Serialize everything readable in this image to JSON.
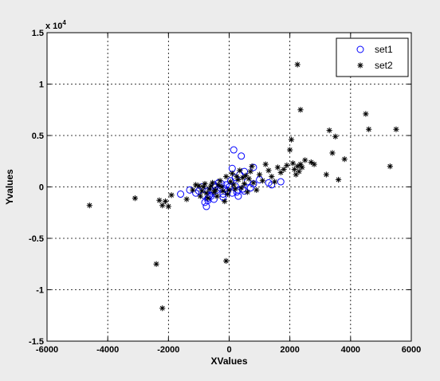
{
  "chart_data": {
    "type": "scatter",
    "title": "",
    "xlabel": "XValues",
    "ylabel": "Yvalues",
    "xlim": [
      -6000,
      6000
    ],
    "ylim": [
      -15000,
      15000
    ],
    "y_exponent_label": "x 10",
    "y_exponent_power": "4",
    "grid": true,
    "legend_position": "top-right",
    "xticks": [
      -6000,
      -4000,
      -2000,
      0,
      2000,
      4000,
      6000
    ],
    "xtick_labels": [
      "-6000",
      "-4000",
      "-2000",
      "0",
      "2000",
      "4000",
      "6000"
    ],
    "yticks": [
      -15000,
      -10000,
      -5000,
      0,
      5000,
      10000,
      15000
    ],
    "ytick_labels": [
      "-1.5",
      "-1",
      "-0.5",
      "0",
      "0.5",
      "1",
      "1.5"
    ],
    "series": [
      {
        "name": "set1",
        "marker": "circle",
        "color": "#0000ff",
        "x": [
          -1600,
          -1300,
          -1100,
          -1000,
          -900,
          -850,
          -800,
          -750,
          -700,
          -700,
          -650,
          -600,
          -550,
          -500,
          -450,
          -400,
          -350,
          -300,
          -250,
          -200,
          -150,
          -100,
          -50,
          0,
          50,
          100,
          150,
          200,
          250,
          300,
          350,
          400,
          450,
          500,
          600,
          700,
          800,
          1000,
          1300,
          1400,
          1700,
          100,
          200,
          300,
          -700,
          -600,
          -500,
          -200,
          500,
          800
        ],
        "y": [
          -700,
          -300,
          -600,
          -400,
          0,
          -800,
          -1500,
          -1900,
          -1100,
          -400,
          -800,
          -300,
          -500,
          -1200,
          0,
          -300,
          400,
          -100,
          300,
          -700,
          -200,
          200,
          -400,
          0,
          600,
          1800,
          3600,
          900,
          -500,
          -900,
          1200,
          3000,
          -200,
          1500,
          500,
          -100,
          300,
          700,
          400,
          200,
          500,
          -600,
          100,
          -300,
          -1300,
          -900,
          200,
          -1000,
          -400,
          1900
        ]
      },
      {
        "name": "set2",
        "marker": "star",
        "color": "#000000",
        "x": [
          -4600,
          -3100,
          -2300,
          -2200,
          -2100,
          -2000,
          -1900,
          -1400,
          -1200,
          -1100,
          -1000,
          -950,
          -900,
          -850,
          -800,
          -750,
          -700,
          -650,
          -600,
          -550,
          -500,
          -450,
          -400,
          -350,
          -300,
          -250,
          -200,
          -150,
          -100,
          -50,
          0,
          50,
          100,
          150,
          200,
          250,
          300,
          350,
          400,
          450,
          500,
          550,
          600,
          650,
          700,
          750,
          800,
          900,
          1000,
          1100,
          1200,
          1300,
          1400,
          1500,
          1600,
          1700,
          1800,
          1900,
          2000,
          2050,
          2100,
          2150,
          2200,
          2250,
          2300,
          2350,
          2400,
          2500,
          2700,
          2800,
          3200,
          3300,
          3400,
          3500,
          3600,
          3800,
          4500,
          4600,
          5300,
          5500,
          -2400,
          -2200,
          -100,
          2250,
          2350
        ],
        "y": [
          -1800,
          -1100,
          -1300,
          -1800,
          -1400,
          -1900,
          -800,
          -1200,
          -300,
          200,
          100,
          -900,
          -400,
          0,
          300,
          -600,
          -1100,
          -200,
          100,
          400,
          -500,
          -300,
          -900,
          200,
          600,
          0,
          -400,
          -1400,
          1000,
          -700,
          -300,
          500,
          1300,
          200,
          -200,
          1000,
          700,
          1600,
          -100,
          900,
          300,
          1100,
          -500,
          800,
          1500,
          2000,
          400,
          -300,
          1200,
          600,
          2200,
          1600,
          1000,
          500,
          1900,
          1400,
          1700,
          2100,
          3600,
          4600,
          2300,
          1700,
          1200,
          2000,
          1500,
          2200,
          1900,
          2600,
          2400,
          2200,
          1200,
          5500,
          3300,
          4900,
          700,
          2700,
          7100,
          5600,
          2000,
          5600,
          -7500,
          -11800,
          -7200,
          11900,
          7500
        ]
      }
    ]
  }
}
